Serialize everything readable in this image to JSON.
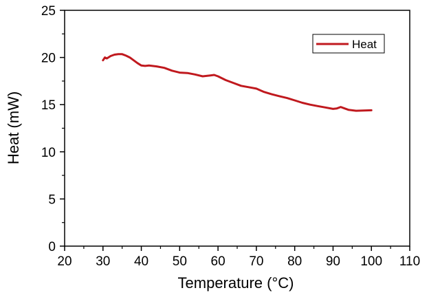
{
  "chart_data": {
    "type": "line",
    "title": "",
    "xlabel": "Temperature (°C)",
    "ylabel": "Heat (mW)",
    "xlim": [
      20,
      110
    ],
    "ylim": [
      0,
      25
    ],
    "xticks": [
      20,
      30,
      40,
      50,
      60,
      70,
      80,
      90,
      100,
      110
    ],
    "yticks": [
      0,
      5,
      10,
      15,
      20,
      25
    ],
    "grid": false,
    "legend_position": "top-right",
    "series": [
      {
        "name": "Heat",
        "color": "#c0191e",
        "x": [
          30,
          30.5,
          31,
          32,
          33,
          34,
          35,
          36,
          37,
          38,
          39,
          40,
          41,
          42,
          44,
          46,
          48,
          50,
          52,
          54,
          56,
          58,
          59,
          60,
          62,
          64,
          66,
          68,
          70,
          72,
          74,
          76,
          78,
          80,
          82,
          84,
          86,
          88,
          90,
          91,
          92,
          93,
          94,
          96,
          98,
          100
        ],
        "y": [
          19.7,
          20.0,
          19.9,
          20.15,
          20.3,
          20.35,
          20.35,
          20.2,
          20.0,
          19.7,
          19.4,
          19.15,
          19.1,
          19.15,
          19.05,
          18.9,
          18.6,
          18.4,
          18.35,
          18.2,
          18.0,
          18.1,
          18.15,
          18.0,
          17.6,
          17.3,
          17.0,
          16.85,
          16.7,
          16.35,
          16.1,
          15.9,
          15.7,
          15.45,
          15.2,
          15.0,
          14.85,
          14.7,
          14.55,
          14.6,
          14.75,
          14.6,
          14.45,
          14.35,
          14.38,
          14.4
        ]
      }
    ]
  }
}
